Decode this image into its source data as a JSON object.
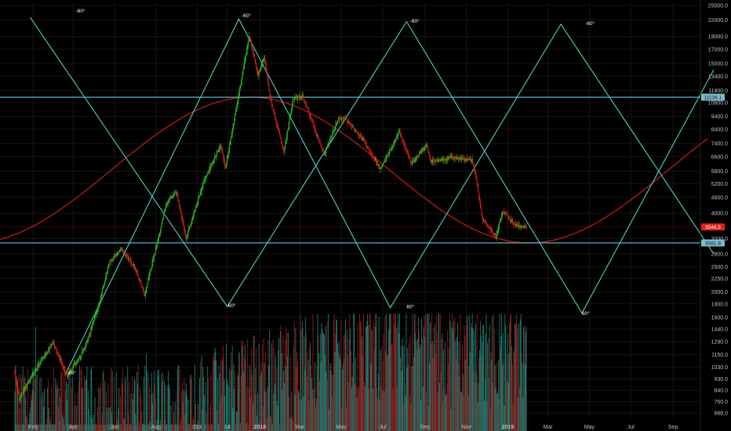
{
  "chart_data": {
    "type": "candlestick",
    "scale": "log",
    "colors": {
      "up": "#26c826",
      "down": "#e0201b",
      "vol_up": "#1f8f82",
      "vol_down": "#a02222",
      "teal": "#4fd1c0",
      "cyan": "#5ec8e0",
      "sine": "#b01818",
      "price_line": "#a01818",
      "bg": "#000000",
      "grid": "#151515",
      "axis_text": "#bfbfbf"
    },
    "y_ticks": [
      "25000.0",
      "22000.0",
      "19000.0",
      "17000.0",
      "15000.0",
      "13400.0",
      "11800.0",
      "10600.0",
      "9400.0",
      "8400.0",
      "7400.0",
      "6600.0",
      "5800.0",
      "5200.0",
      "4600.0",
      "4000.0",
      "3200.0",
      "2800.0",
      "2500.0",
      "2250.0",
      "2000.0",
      "1800.0",
      "1600.0",
      "1440.0",
      "1290.0",
      "1150.0",
      "1030.0",
      "930.0",
      "840.0",
      "760.0",
      "688.0"
    ],
    "x_ticks": [
      "Feb",
      "Apr",
      "Jun",
      "Aug",
      "Oct",
      "14",
      "2018",
      "Mar",
      "May",
      "Jul",
      "Sep",
      "Nov",
      "2019",
      "Mar",
      "May",
      "Jul",
      "Sep"
    ],
    "x_range": [
      "2017-01-01",
      "2019-10-31"
    ],
    "y_range": [
      620,
      25000
    ],
    "price_tags": [
      {
        "value": "11136.1",
        "price": 11136.1,
        "style": "cyan"
      },
      {
        "value": "3546.5",
        "price": 3546.5,
        "style": "red"
      },
      {
        "value": "3081.8",
        "price": 3081.8,
        "style": "cyan"
      }
    ],
    "horizontal_lines": [
      11136.1,
      3081.8
    ],
    "angle_labels": [
      {
        "text": "-60°",
        "date": "2017-04-05",
        "price": 23500
      },
      {
        "text": "-60°",
        "date": "2017-12-05",
        "price": 22500
      },
      {
        "text": "-60°",
        "date": "2018-08-10",
        "price": 21500
      },
      {
        "text": "-60°",
        "date": "2019-04-25",
        "price": 21000
      },
      {
        "text": "60°",
        "date": "2017-03-25",
        "price": 965
      },
      {
        "text": "60°",
        "date": "2017-11-15",
        "price": 1750
      },
      {
        "text": "60°",
        "date": "2018-08-05",
        "price": 1730
      },
      {
        "text": "60°",
        "date": "2019-04-20",
        "price": 1630
      }
    ],
    "zigzag_a": [
      {
        "date": "2017-01-28",
        "price": 22500
      },
      {
        "date": "2017-11-14",
        "price": 1760
      },
      {
        "date": "2018-08-05",
        "price": 21700
      },
      {
        "date": "2019-04-20",
        "price": 1660
      },
      {
        "date": "2019-10-31",
        "price": 14200
      }
    ],
    "zigzag_b": [
      {
        "date": "2017-03-20",
        "price": 960
      },
      {
        "date": "2017-12-01",
        "price": 22200
      },
      {
        "date": "2018-07-12",
        "price": 1740
      },
      {
        "date": "2019-03-20",
        "price": 21200
      },
      {
        "date": "2019-10-31",
        "price": 2800
      }
    ],
    "sine_wave": {
      "period_days": 820,
      "peak_date": "2017-12-18",
      "high": 11136.1,
      "low": 3081.8
    },
    "price_anchors": [
      {
        "date": "2017-01-05",
        "price": 1000
      },
      {
        "date": "2017-01-12",
        "price": 780
      },
      {
        "date": "2017-02-01",
        "price": 960
      },
      {
        "date": "2017-03-03",
        "price": 1280
      },
      {
        "date": "2017-03-24",
        "price": 950
      },
      {
        "date": "2017-04-20",
        "price": 1230
      },
      {
        "date": "2017-05-10",
        "price": 1800
      },
      {
        "date": "2017-05-25",
        "price": 2600
      },
      {
        "date": "2017-06-12",
        "price": 2900
      },
      {
        "date": "2017-07-01",
        "price": 2500
      },
      {
        "date": "2017-07-16",
        "price": 1950
      },
      {
        "date": "2017-08-05",
        "price": 3200
      },
      {
        "date": "2017-08-17",
        "price": 4400
      },
      {
        "date": "2017-09-01",
        "price": 4800
      },
      {
        "date": "2017-09-15",
        "price": 3200
      },
      {
        "date": "2017-10-12",
        "price": 5400
      },
      {
        "date": "2017-11-05",
        "price": 7300
      },
      {
        "date": "2017-11-12",
        "price": 6000
      },
      {
        "date": "2017-11-29",
        "price": 10500
      },
      {
        "date": "2017-12-17",
        "price": 19200
      },
      {
        "date": "2017-12-30",
        "price": 13500
      },
      {
        "date": "2018-01-08",
        "price": 16000
      },
      {
        "date": "2018-01-17",
        "price": 11000
      },
      {
        "date": "2018-02-06",
        "price": 6900
      },
      {
        "date": "2018-02-20",
        "price": 11000
      },
      {
        "date": "2018-03-05",
        "price": 11300
      },
      {
        "date": "2018-04-06",
        "price": 6700
      },
      {
        "date": "2018-04-28",
        "price": 9300
      },
      {
        "date": "2018-05-08",
        "price": 9200
      },
      {
        "date": "2018-06-05",
        "price": 7500
      },
      {
        "date": "2018-06-28",
        "price": 5900
      },
      {
        "date": "2018-07-26",
        "price": 8200
      },
      {
        "date": "2018-08-12",
        "price": 6200
      },
      {
        "date": "2018-09-04",
        "price": 7300
      },
      {
        "date": "2018-09-10",
        "price": 6300
      },
      {
        "date": "2018-10-10",
        "price": 6550
      },
      {
        "date": "2018-11-10",
        "price": 6400
      },
      {
        "date": "2018-11-16",
        "price": 5500
      },
      {
        "date": "2018-11-25",
        "price": 3800
      },
      {
        "date": "2018-12-15",
        "price": 3250
      },
      {
        "date": "2018-12-25",
        "price": 4100
      },
      {
        "date": "2019-01-12",
        "price": 3600
      },
      {
        "date": "2019-01-28",
        "price": 3546.5
      }
    ],
    "volume_range": [
      620,
      1650
    ]
  }
}
